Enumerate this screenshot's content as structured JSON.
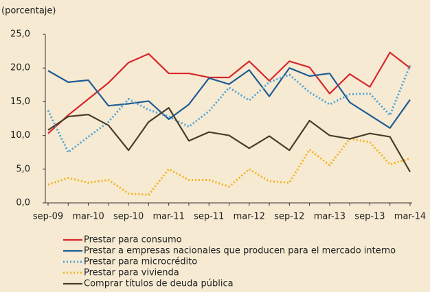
{
  "chart_data": {
    "type": "line",
    "ylabel": "(porcentaje)",
    "categories": [
      "sep-09",
      null,
      "mar-10",
      null,
      "sep-10",
      null,
      "mar-11",
      null,
      "sep-11",
      null,
      "mar-12",
      null,
      "sep-12",
      null,
      "mar-13",
      null,
      "sep-13",
      null,
      "mar-14"
    ],
    "ylim": [
      0,
      25
    ],
    "yticks": [
      {
        "value": 0,
        "label": "0,0"
      },
      {
        "value": 5,
        "label": "5,0"
      },
      {
        "value": 10,
        "label": "10,0"
      },
      {
        "value": 15,
        "label": "15,0"
      },
      {
        "value": 20,
        "label": "20,0"
      },
      {
        "value": 25,
        "label": "25,0"
      }
    ],
    "grid": false,
    "legend": "bottom",
    "series": [
      {
        "name": "Prestar para consumo",
        "color": "#d7262c",
        "style": "solid",
        "values": [
          10.3,
          13.0,
          15.4,
          17.8,
          20.8,
          22.1,
          19.2,
          19.2,
          18.6,
          18.6,
          21.0,
          18.1,
          21.0,
          20.1,
          16.2,
          19.1,
          17.2,
          22.3,
          20.0
        ]
      },
      {
        "name": "Prestar a empresas nacionales que producen para el mercado interno",
        "color": "#1f5c94",
        "style": "solid",
        "values": [
          19.6,
          17.9,
          18.2,
          14.4,
          14.7,
          15.1,
          12.4,
          14.6,
          18.5,
          17.6,
          19.7,
          15.8,
          20.0,
          18.8,
          19.2,
          14.9,
          13.0,
          11.1,
          15.3
        ]
      },
      {
        "name": "Prestar para microcrédito",
        "color": "#4aa3d8",
        "style": "dotted",
        "values": [
          13.7,
          7.5,
          9.8,
          12.0,
          15.4,
          13.8,
          12.8,
          11.3,
          13.6,
          17.1,
          15.2,
          17.9,
          19.0,
          16.4,
          14.6,
          16.1,
          16.2,
          13.0,
          20.4
        ]
      },
      {
        "name": "Prestar para vivienda",
        "color": "#f2b31b",
        "style": "dotted",
        "values": [
          2.7,
          3.7,
          3.0,
          3.4,
          1.4,
          1.2,
          5.0,
          3.4,
          3.4,
          2.4,
          5.0,
          3.2,
          3.0,
          7.9,
          5.6,
          9.5,
          9.0,
          5.7,
          6.6
        ]
      },
      {
        "name": "Comprar títulos de deuda pública",
        "color": "#4a3b2b",
        "style": "solid",
        "values": [
          10.8,
          12.8,
          13.1,
          11.5,
          7.8,
          12.0,
          14.1,
          9.2,
          10.5,
          10.0,
          8.1,
          9.9,
          7.8,
          12.2,
          10.0,
          9.5,
          10.3,
          9.8,
          4.6
        ]
      }
    ]
  }
}
